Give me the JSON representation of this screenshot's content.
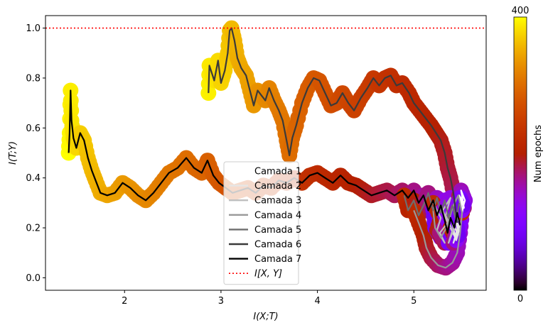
{
  "chart_data": {
    "type": "line",
    "xlabel": "I(X;T)",
    "ylabel": "I(T;Y)",
    "xlim": [
      1.18,
      5.75
    ],
    "ylim": [
      -0.05,
      1.05
    ],
    "x_ticks": [
      "2",
      "3",
      "4",
      "5"
    ],
    "y_ticks": [
      "0.0",
      "0.2",
      "0.4",
      "0.6",
      "0.8",
      "1.0"
    ],
    "reference_line": {
      "name": "I[X,Y]",
      "legend_label": "I[X, Y]",
      "y": 1.0,
      "color": "#ff0000",
      "style": "dotted"
    },
    "colorbar": {
      "label": "Num epochs",
      "min_label": "0",
      "max_label": "400",
      "range": [
        0,
        400
      ],
      "colormap": "gnuplot"
    },
    "legend": {
      "location": "lower center"
    },
    "series": [
      {
        "name": "Camada 1",
        "color": "#ffffff",
        "points": [
          [
            5.5,
            0.26
          ],
          [
            5.52,
            0.3
          ],
          [
            5.47,
            0.33
          ],
          [
            5.52,
            0.28
          ],
          [
            5.49,
            0.35
          ],
          [
            5.53,
            0.31
          ],
          [
            5.5,
            0.27
          ],
          [
            5.48,
            0.32
          ],
          [
            5.51,
            0.29
          ]
        ]
      },
      {
        "name": "Camada 2",
        "color": "#e6e6e6",
        "points": [
          [
            5.38,
            0.2
          ],
          [
            5.43,
            0.16
          ],
          [
            5.4,
            0.22
          ],
          [
            5.45,
            0.18
          ],
          [
            5.41,
            0.14
          ],
          [
            5.46,
            0.21
          ],
          [
            5.42,
            0.26
          ],
          [
            5.47,
            0.19
          ],
          [
            5.44,
            0.15
          ],
          [
            5.48,
            0.22
          ],
          [
            5.43,
            0.25
          ],
          [
            5.46,
            0.17
          ]
        ]
      },
      {
        "name": "Camada 3",
        "color": "#bfbfbf",
        "points": [
          [
            5.2,
            0.3
          ],
          [
            5.28,
            0.24
          ],
          [
            5.24,
            0.19
          ],
          [
            5.32,
            0.14
          ],
          [
            5.27,
            0.18
          ],
          [
            5.35,
            0.22
          ],
          [
            5.3,
            0.27
          ],
          [
            5.38,
            0.32
          ],
          [
            5.33,
            0.25
          ],
          [
            5.4,
            0.19
          ],
          [
            5.36,
            0.14
          ],
          [
            5.42,
            0.2
          ]
        ]
      },
      {
        "name": "Camada 4",
        "color": "#999999",
        "points": [
          [
            5.0,
            0.27
          ],
          [
            5.05,
            0.22
          ],
          [
            5.1,
            0.17
          ],
          [
            5.13,
            0.12
          ],
          [
            5.18,
            0.08
          ],
          [
            5.25,
            0.05
          ],
          [
            5.33,
            0.04
          ],
          [
            5.4,
            0.06
          ],
          [
            5.45,
            0.1
          ],
          [
            5.48,
            0.18
          ],
          [
            5.5,
            0.26
          ],
          [
            5.46,
            0.33
          ],
          [
            5.4,
            0.28
          ],
          [
            5.35,
            0.21
          ],
          [
            5.28,
            0.16
          ],
          [
            5.22,
            0.2
          ],
          [
            5.2,
            0.27
          ]
        ]
      },
      {
        "name": "Camada 5",
        "color": "#6e6e6e",
        "points": [
          [
            4.9,
            0.33
          ],
          [
            4.94,
            0.27
          ],
          [
            5.0,
            0.31
          ],
          [
            5.05,
            0.25
          ],
          [
            5.1,
            0.29
          ],
          [
            5.15,
            0.34
          ],
          [
            5.2,
            0.27
          ],
          [
            5.24,
            0.32
          ],
          [
            5.28,
            0.26
          ],
          [
            5.32,
            0.31
          ],
          [
            5.36,
            0.24
          ],
          [
            5.4,
            0.29
          ],
          [
            5.44,
            0.23
          ],
          [
            5.47,
            0.3
          ]
        ]
      },
      {
        "name": "Camada 6",
        "color": "#3a3a3a",
        "points": [
          [
            2.87,
            0.74
          ],
          [
            2.88,
            0.85
          ],
          [
            2.93,
            0.79
          ],
          [
            2.97,
            0.87
          ],
          [
            3.0,
            0.78
          ],
          [
            3.04,
            0.83
          ],
          [
            3.07,
            0.9
          ],
          [
            3.09,
            0.99
          ],
          [
            3.11,
            1.0
          ],
          [
            3.14,
            0.95
          ],
          [
            3.17,
            0.88
          ],
          [
            3.21,
            0.84
          ],
          [
            3.26,
            0.81
          ],
          [
            3.3,
            0.75
          ],
          [
            3.34,
            0.69
          ],
          [
            3.38,
            0.75
          ],
          [
            3.42,
            0.73
          ],
          [
            3.46,
            0.71
          ],
          [
            3.5,
            0.76
          ],
          [
            3.55,
            0.71
          ],
          [
            3.6,
            0.67
          ],
          [
            3.64,
            0.63
          ],
          [
            3.68,
            0.55
          ],
          [
            3.71,
            0.49
          ],
          [
            3.74,
            0.56
          ],
          [
            3.78,
            0.61
          ],
          [
            3.84,
            0.7
          ],
          [
            3.9,
            0.76
          ],
          [
            3.96,
            0.8
          ],
          [
            4.02,
            0.79
          ],
          [
            4.08,
            0.74
          ],
          [
            4.14,
            0.69
          ],
          [
            4.2,
            0.7
          ],
          [
            4.26,
            0.74
          ],
          [
            4.32,
            0.7
          ],
          [
            4.38,
            0.67
          ],
          [
            4.45,
            0.72
          ],
          [
            4.52,
            0.76
          ],
          [
            4.58,
            0.8
          ],
          [
            4.64,
            0.77
          ],
          [
            4.7,
            0.8
          ],
          [
            4.76,
            0.81
          ],
          [
            4.82,
            0.77
          ],
          [
            4.88,
            0.78
          ],
          [
            4.95,
            0.74
          ],
          [
            5.0,
            0.7
          ],
          [
            5.06,
            0.67
          ],
          [
            5.12,
            0.64
          ],
          [
            5.18,
            0.61
          ],
          [
            5.23,
            0.58
          ],
          [
            5.28,
            0.55
          ],
          [
            5.32,
            0.5
          ],
          [
            5.35,
            0.44
          ],
          [
            5.38,
            0.4
          ],
          [
            5.41,
            0.34
          ],
          [
            5.43,
            0.28
          ],
          [
            5.45,
            0.22
          ]
        ]
      },
      {
        "name": "Camada 7",
        "color": "#000000",
        "points": [
          [
            1.42,
            0.5
          ],
          [
            1.43,
            0.58
          ],
          [
            1.44,
            0.75
          ],
          [
            1.45,
            0.63
          ],
          [
            1.47,
            0.56
          ],
          [
            1.5,
            0.52
          ],
          [
            1.54,
            0.58
          ],
          [
            1.58,
            0.55
          ],
          [
            1.62,
            0.48
          ],
          [
            1.66,
            0.43
          ],
          [
            1.7,
            0.39
          ],
          [
            1.75,
            0.34
          ],
          [
            1.82,
            0.33
          ],
          [
            1.9,
            0.34
          ],
          [
            1.98,
            0.38
          ],
          [
            2.06,
            0.36
          ],
          [
            2.14,
            0.33
          ],
          [
            2.22,
            0.31
          ],
          [
            2.3,
            0.34
          ],
          [
            2.38,
            0.38
          ],
          [
            2.46,
            0.42
          ],
          [
            2.55,
            0.44
          ],
          [
            2.64,
            0.48
          ],
          [
            2.72,
            0.44
          ],
          [
            2.8,
            0.42
          ],
          [
            2.86,
            0.47
          ],
          [
            2.92,
            0.41
          ],
          [
            2.98,
            0.38
          ],
          [
            3.05,
            0.36
          ],
          [
            3.12,
            0.34
          ],
          [
            3.2,
            0.35
          ],
          [
            3.28,
            0.36
          ],
          [
            3.36,
            0.34
          ],
          [
            3.44,
            0.37
          ],
          [
            3.52,
            0.36
          ],
          [
            3.6,
            0.39
          ],
          [
            3.68,
            0.38
          ],
          [
            3.76,
            0.4
          ],
          [
            3.84,
            0.38
          ],
          [
            3.92,
            0.41
          ],
          [
            4.0,
            0.42
          ],
          [
            4.08,
            0.4
          ],
          [
            4.16,
            0.38
          ],
          [
            4.24,
            0.41
          ],
          [
            4.32,
            0.38
          ],
          [
            4.4,
            0.37
          ],
          [
            4.48,
            0.35
          ],
          [
            4.56,
            0.33
          ],
          [
            4.64,
            0.34
          ],
          [
            4.72,
            0.35
          ],
          [
            4.8,
            0.33
          ],
          [
            4.88,
            0.35
          ],
          [
            4.94,
            0.32
          ],
          [
            5.0,
            0.35
          ],
          [
            5.05,
            0.3
          ],
          [
            5.1,
            0.33
          ],
          [
            5.15,
            0.27
          ],
          [
            5.2,
            0.31
          ],
          [
            5.24,
            0.25
          ],
          [
            5.28,
            0.29
          ],
          [
            5.32,
            0.23
          ],
          [
            5.35,
            0.18
          ],
          [
            5.38,
            0.24
          ],
          [
            5.42,
            0.2
          ],
          [
            5.45,
            0.26
          ],
          [
            5.48,
            0.21
          ]
        ]
      }
    ]
  }
}
